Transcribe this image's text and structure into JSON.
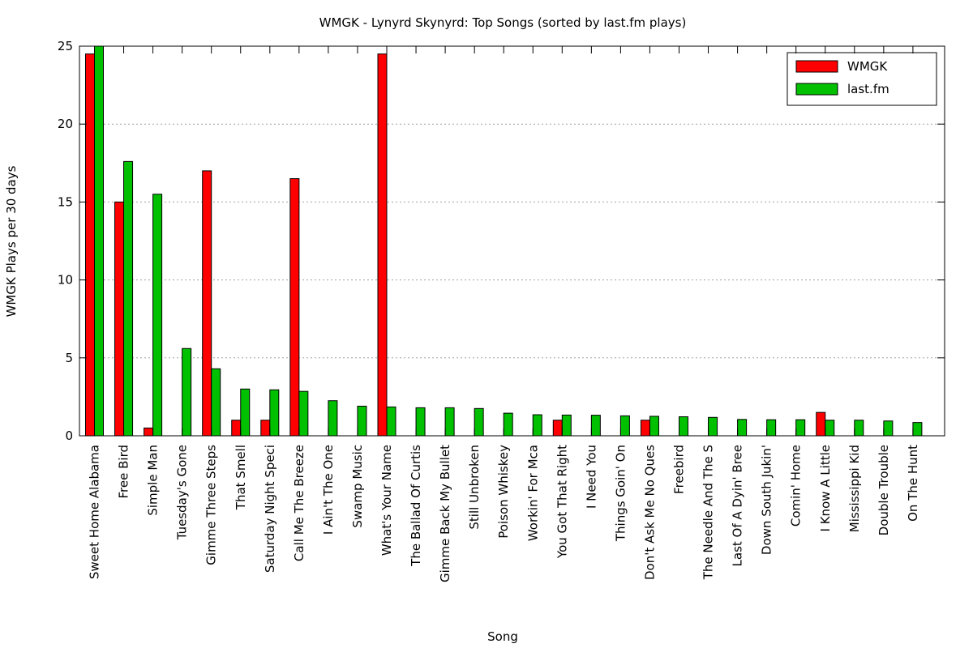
{
  "chart_data": {
    "type": "bar",
    "title": "WMGK - Lynyrd Skynyrd: Top Songs (sorted by last.fm plays)",
    "xlabel": "Song",
    "ylabel": "WMGK Plays per 30 days",
    "ylim": [
      0,
      25
    ],
    "yticks": [
      "0",
      "5",
      "10",
      "15",
      "20",
      "25"
    ],
    "grid": true,
    "legend_position": "top-right",
    "categories": [
      "Sweet Home Alabama",
      "Free Bird",
      "Simple Man",
      "Tuesday's Gone",
      "Gimme Three Steps",
      "That Smell",
      "Saturday Night Speci",
      "Call Me The Breeze",
      "I Ain't The One",
      "Swamp Music",
      "What's Your Name",
      "The Ballad Of Curtis",
      "Gimme Back My Bullet",
      "Still Unbroken",
      "Poison Whiskey",
      "Workin' For Mca",
      "You Got That Right",
      "I Need You",
      "Things Goin' On",
      "Don't Ask Me No Ques",
      "Freebird",
      "The Needle And The S",
      "Last Of A Dyin' Bree",
      "Down South Jukin'",
      "Comin' Home",
      "I Know A Little",
      "Mississippi Kid",
      "Double Trouble",
      "On The Hunt"
    ],
    "series": [
      {
        "name": "WMGK",
        "color": "#ff0000",
        "values": [
          24.5,
          15,
          0.5,
          0,
          17,
          1,
          1,
          16.5,
          0,
          0,
          24.5,
          0,
          0,
          0,
          0,
          0,
          1,
          0,
          0,
          1,
          0,
          0,
          0,
          0,
          0,
          1.5,
          0,
          0,
          0
        ]
      },
      {
        "name": "last.fm",
        "color": "#00c000",
        "values": [
          25,
          17.6,
          15.5,
          5.6,
          4.3,
          3.0,
          2.95,
          2.85,
          2.25,
          1.9,
          1.85,
          1.8,
          1.8,
          1.75,
          1.45,
          1.35,
          1.33,
          1.32,
          1.28,
          1.25,
          1.22,
          1.18,
          1.05,
          1.03,
          1.03,
          1.0,
          1.0,
          0.95,
          0.85
        ]
      }
    ]
  }
}
